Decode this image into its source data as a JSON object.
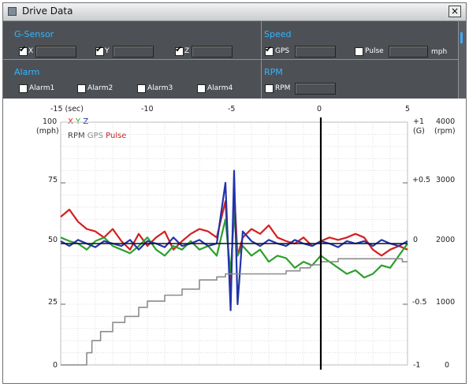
{
  "window": {
    "title": "Drive Data",
    "close_label": "×"
  },
  "gsensor": {
    "title": "G-Sensor",
    "items": [
      {
        "label": "X",
        "checked": true,
        "value": ""
      },
      {
        "label": "Y",
        "checked": true,
        "value": ""
      },
      {
        "label": "Z",
        "checked": true,
        "value": ""
      }
    ]
  },
  "speed": {
    "title": "Speed",
    "gps": {
      "label": "GPS",
      "checked": true,
      "value": ""
    },
    "pulse": {
      "label": "Pulse",
      "checked": false,
      "value": ""
    },
    "unit": "mph"
  },
  "alarm": {
    "title": "Alarm",
    "items": [
      {
        "label": "Alarm1",
        "checked": false
      },
      {
        "label": "Alarm2",
        "checked": false
      },
      {
        "label": "Alarm3",
        "checked": false
      },
      {
        "label": "Alarm4",
        "checked": false
      }
    ]
  },
  "rpm": {
    "title": "RPM",
    "item": {
      "label": "RPM",
      "checked": false,
      "value": ""
    }
  },
  "colors": {
    "x": "#d42020",
    "y": "#2ca02c",
    "z": "#2233aa",
    "rpm": "#8c8c8c",
    "gps": "#8c8c8c",
    "pulse": "#c81e1e",
    "accent": "#33b5ff"
  },
  "chart": {
    "top_axis": {
      "first_label": "-15 (sec)",
      "ticks": [
        "-10",
        "-5",
        "0",
        "5"
      ]
    },
    "left_axis": {
      "ticks": [
        "100",
        "75",
        "50",
        "25",
        "0"
      ],
      "unit": "(mph)"
    },
    "right_axis_g": {
      "ticks": [
        "+1",
        "+0.5",
        "0",
        "-0.5",
        "-1"
      ],
      "unit": "(G)"
    },
    "right_axis_rpm": {
      "ticks": [
        "4000",
        "3000",
        "2000",
        "1000",
        "0"
      ],
      "unit": "(rpm)"
    },
    "legend": {
      "row1": [
        "X",
        "Y",
        "Z"
      ],
      "row2": [
        "RPM",
        "GPS",
        "Pulse"
      ]
    }
  },
  "chart_data": {
    "type": "line",
    "x_range": [
      -15,
      5
    ],
    "y_range_mph": [
      0,
      100
    ],
    "y_range_g": [
      -1,
      1
    ],
    "y_range_rpm": [
      0,
      4000
    ],
    "grid": true,
    "cursor_x": 0,
    "series": [
      {
        "name": "X",
        "axis": "g",
        "x": [
          -15,
          -14.5,
          -14,
          -13.5,
          -13,
          -12.5,
          -12,
          -11.5,
          -11,
          -10.5,
          -10,
          -9.5,
          -9,
          -8.5,
          -8,
          -7.5,
          -7,
          -6.5,
          -6,
          -5.5,
          -5.2,
          -5,
          -4.8,
          -4.5,
          -4,
          -3.5,
          -3,
          -2.5,
          -2,
          -1.5,
          -1,
          -0.5,
          0,
          0.5,
          1,
          1.5,
          2,
          2.5,
          3,
          3.5,
          4,
          4.5,
          5
        ],
        "values": [
          0.22,
          0.28,
          0.18,
          0.12,
          0.1,
          0.05,
          0.12,
          0.02,
          -0.05,
          0.08,
          -0.02,
          0.05,
          0.1,
          -0.05,
          0.02,
          0.08,
          0.12,
          0.1,
          0.05,
          0.35,
          -0.4,
          0.45,
          -0.1,
          0.05,
          0.12,
          0.08,
          0.15,
          0.05,
          0.02,
          0.0,
          0.05,
          -0.02,
          0.02,
          0.05,
          0.03,
          0.05,
          0.08,
          0.05,
          -0.05,
          -0.1,
          -0.05,
          -0.02,
          -0.05
        ]
      },
      {
        "name": "Y",
        "axis": "g",
        "x": [
          -15,
          -14.5,
          -14,
          -13.5,
          -13,
          -12.5,
          -12,
          -11.5,
          -11,
          -10.5,
          -10,
          -9.5,
          -9,
          -8.5,
          -8,
          -7.5,
          -7,
          -6.5,
          -6,
          -5.5,
          -5.2,
          -5,
          -4.8,
          -4.5,
          -4,
          -3.5,
          -3,
          -2.5,
          -2,
          -1.5,
          -1,
          -0.5,
          0,
          0.5,
          1,
          1.5,
          2,
          2.5,
          3,
          3.5,
          4,
          4.5,
          5
        ],
        "values": [
          0.05,
          0.02,
          0.0,
          -0.05,
          0.02,
          0.05,
          -0.02,
          -0.05,
          -0.08,
          -0.02,
          0.05,
          -0.05,
          -0.1,
          -0.02,
          -0.05,
          0.02,
          -0.05,
          -0.02,
          -0.1,
          0.2,
          -0.25,
          0.25,
          -0.1,
          -0.02,
          -0.1,
          -0.05,
          -0.15,
          -0.1,
          -0.12,
          -0.2,
          -0.15,
          -0.18,
          -0.1,
          -0.15,
          -0.2,
          -0.25,
          -0.22,
          -0.28,
          -0.25,
          -0.18,
          -0.2,
          -0.1,
          0.0
        ]
      },
      {
        "name": "Z",
        "axis": "g",
        "x": [
          -15,
          -14.5,
          -14,
          -13.5,
          -13,
          -12.5,
          -12,
          -11.5,
          -11,
          -10.5,
          -10,
          -9.5,
          -9,
          -8.5,
          -8,
          -7.5,
          -7,
          -6.5,
          -6,
          -5.5,
          -5.2,
          -5,
          -4.8,
          -4.5,
          -4,
          -3.5,
          -3,
          -2.5,
          -2,
          -1.5,
          -1,
          -0.5,
          0,
          0.5,
          1,
          1.5,
          2,
          2.5,
          3,
          3.5,
          4,
          4.5,
          5
        ],
        "values": [
          0.02,
          -0.02,
          0.03,
          0.0,
          -0.03,
          0.02,
          0.0,
          -0.02,
          0.03,
          -0.05,
          0.02,
          0.0,
          -0.03,
          0.05,
          -0.02,
          0.0,
          0.03,
          -0.02,
          0.0,
          0.5,
          -0.55,
          0.6,
          -0.5,
          0.1,
          0.02,
          -0.02,
          0.03,
          0.0,
          -0.02,
          0.03,
          0.0,
          -0.02,
          0.02,
          0.0,
          -0.03,
          0.02,
          0.0,
          0.02,
          -0.02,
          0.03,
          0.0,
          -0.02,
          0.02
        ]
      },
      {
        "name": "RPM",
        "axis": "rpm",
        "x": [
          -15,
          -13.8,
          -13.5,
          -13.2,
          -12.7,
          -12,
          -11.3,
          -10.5,
          -10,
          -9,
          -8,
          -7,
          -6,
          -5.5,
          -5,
          -4,
          -3,
          -2,
          -1.2,
          -0.6,
          0,
          1,
          2,
          3,
          4,
          4.7,
          5
        ],
        "values": [
          0,
          0,
          200,
          400,
          550,
          700,
          800,
          950,
          1050,
          1150,
          1250,
          1400,
          1450,
          1500,
          1500,
          1500,
          1500,
          1550,
          1600,
          1650,
          1700,
          1750,
          1750,
          1750,
          1750,
          1700,
          1700
        ]
      }
    ]
  }
}
